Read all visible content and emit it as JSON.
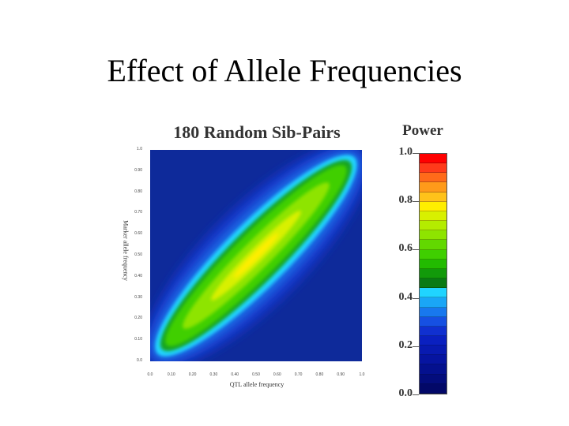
{
  "slide": {
    "title": "Effect of Allele Frequencies"
  },
  "chart_data": {
    "type": "heatmap",
    "title": "180 Random Sib-Pairs",
    "xlabel": "QTL allele frequency",
    "ylabel": "Marker allele frequency",
    "xlim": [
      0.0,
      1.0
    ],
    "ylim": [
      0.0,
      1.0
    ],
    "x_ticks": [
      "0.0",
      "0.10",
      "0.20",
      "0.30",
      "0.40",
      "0.50",
      "0.60",
      "0.70",
      "0.80",
      "0.90",
      "1.0"
    ],
    "y_ticks": [
      "0.0",
      "0.10",
      "0.20",
      "0.30",
      "0.40",
      "0.50",
      "0.60",
      "0.70",
      "0.80",
      "0.90",
      "1.0"
    ],
    "pattern": "power peaks along the diagonal where QTL allele frequency equals marker allele frequency, highest near 0.5 and falling off away from the diagonal",
    "colorbar": {
      "title": "Power",
      "labels": [
        "1.0",
        "0.8",
        "0.6",
        "0.4",
        "0.2",
        "0.0"
      ],
      "range": [
        0.0,
        1.0
      ],
      "colors_top_to_bottom": [
        "#ff0000",
        "#ff3a1a",
        "#ff6a1a",
        "#ff9a1a",
        "#ffc21a",
        "#ffee00",
        "#d8f000",
        "#b4ec00",
        "#8ee400",
        "#62d800",
        "#3fcf00",
        "#22bb00",
        "#129a0a",
        "#0a7a14",
        "#20d4ff",
        "#1aa6f6",
        "#1878ee",
        "#1650e2",
        "#1030d0",
        "#0a20c0",
        "#081ab0",
        "#0614a0",
        "#04108e",
        "#030c7c",
        "#020868"
      ]
    }
  }
}
